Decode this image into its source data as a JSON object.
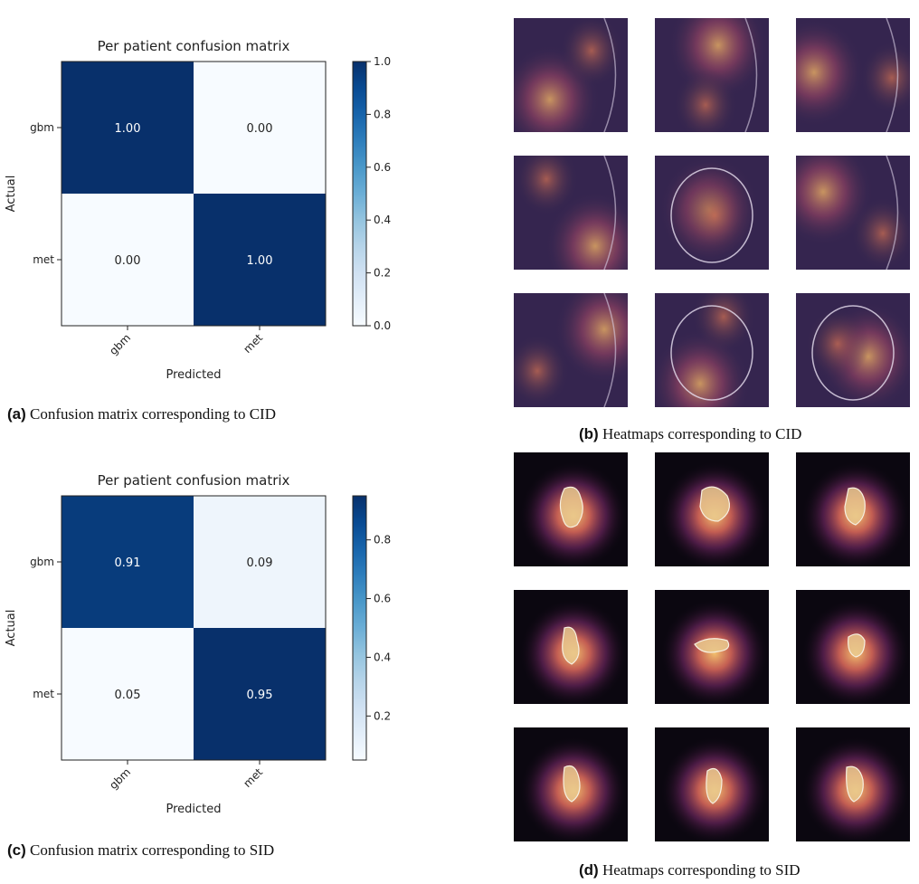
{
  "chart_data": [
    {
      "type": "heatmap",
      "title": "Per patient confusion matrix",
      "xlabel": "Predicted",
      "ylabel": "Actual",
      "x_categories": [
        "gbm",
        "met"
      ],
      "y_categories": [
        "gbm",
        "met"
      ],
      "values": [
        [
          1.0,
          0.0
        ],
        [
          0.0,
          1.0
        ]
      ],
      "value_labels": [
        [
          "1.00",
          "0.00"
        ],
        [
          "0.00",
          "1.00"
        ]
      ],
      "colorbar": {
        "min": 0.0,
        "max": 1.0,
        "ticks": [
          "0.0",
          "0.2",
          "0.4",
          "0.6",
          "0.8",
          "1.0"
        ],
        "tick_values": [
          0.0,
          0.2,
          0.4,
          0.6,
          0.8,
          1.0
        ]
      },
      "colormap": "Blues"
    },
    {
      "type": "heatmap",
      "title": "Per patient confusion matrix",
      "xlabel": "Predicted",
      "ylabel": "Actual",
      "x_categories": [
        "gbm",
        "met"
      ],
      "y_categories": [
        "gbm",
        "met"
      ],
      "values": [
        [
          0.91,
          0.09
        ],
        [
          0.05,
          0.95
        ]
      ],
      "value_labels": [
        [
          "0.91",
          "0.09"
        ],
        [
          "0.05",
          "0.95"
        ]
      ],
      "colorbar": {
        "min": 0.05,
        "max": 0.95,
        "ticks": [
          "0.2",
          "0.4",
          "0.6",
          "0.8"
        ],
        "tick_values": [
          0.2,
          0.4,
          0.6,
          0.8
        ]
      },
      "colormap": "Blues"
    }
  ],
  "captions": {
    "a": {
      "tag": "(a)",
      "text": "Confusion matrix corresponding to CID"
    },
    "b": {
      "tag": "(b)",
      "text": "Heatmaps corresponding to CID"
    },
    "c": {
      "tag": "(c)",
      "text": "Confusion matrix corresponding to SID"
    },
    "d": {
      "tag": "(d)",
      "text": "Heatmaps corresponding to SID"
    }
  }
}
